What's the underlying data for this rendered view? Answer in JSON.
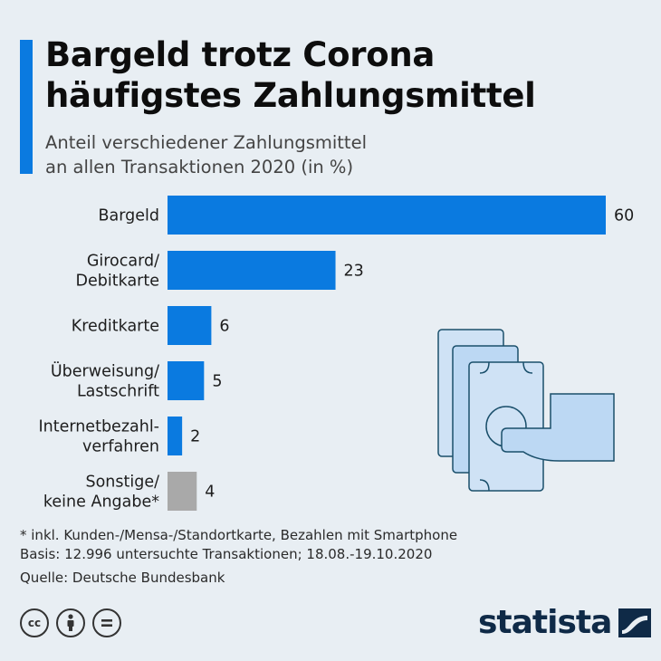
{
  "title_line1": "Bargeld trotz Corona",
  "title_line2": "häufigstes Zahlungsmittel",
  "subtitle_line1": "Anteil verschiedener Zahlungsmittel",
  "subtitle_line2": "an allen Transaktionen 2020 (in %)",
  "chart_data": {
    "type": "bar",
    "orientation": "horizontal",
    "categories": [
      [
        "Bargeld"
      ],
      [
        "Girocard/",
        "Debitkarte"
      ],
      [
        "Kreditkarte"
      ],
      [
        "Überweisung/",
        "Lastschrift"
      ],
      [
        "Internetbezahl-",
        "verfahren"
      ],
      [
        "Sonstige/",
        "keine Angabe*"
      ]
    ],
    "values": [
      60,
      23,
      6,
      5,
      2,
      4
    ],
    "bar_colors": [
      "#0a7ae0",
      "#0a7ae0",
      "#0a7ae0",
      "#0a7ae0",
      "#0a7ae0",
      "#a9a9a9"
    ],
    "xlim": [
      0,
      60
    ],
    "grid": false,
    "legend": "none"
  },
  "footnote_line1": "* inkl. Kunden-/Mensa-/Standortkarte, Bezahlen mit Smartphone",
  "footnote_line2": "Basis: 12.996 untersuchte Transaktionen; 18.08.-19.10.2020",
  "source": "Quelle: Deutsche Bundesbank",
  "license_icons": [
    "cc-icon",
    "attribution-icon",
    "no-derivatives-icon"
  ],
  "brand": "statista",
  "colors": {
    "accent": "#0a7ae0",
    "other": "#a9a9a9",
    "background": "#e8eef3",
    "brand": "#0f2a47"
  }
}
